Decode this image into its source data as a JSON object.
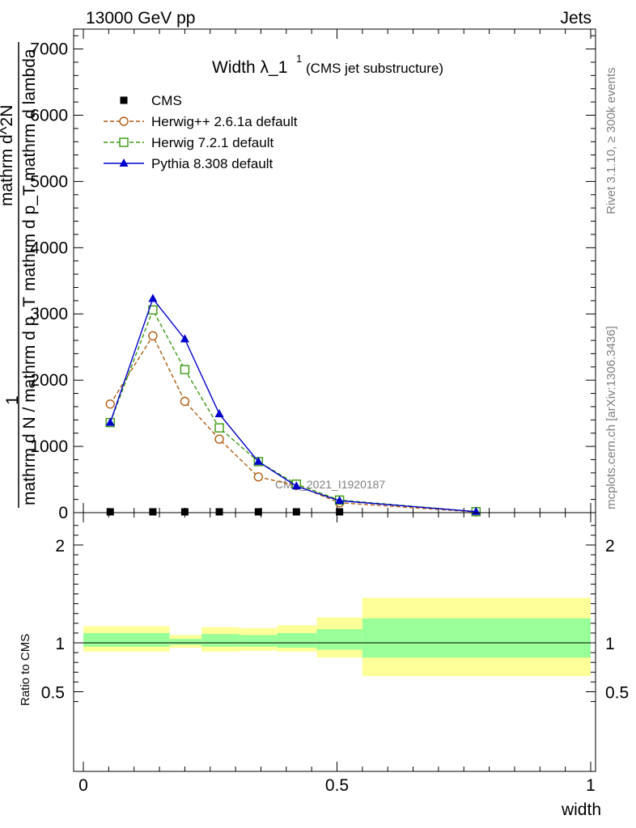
{
  "header": {
    "left": "13000 GeV pp",
    "right": "Jets"
  },
  "title": {
    "main": "Width λ_1",
    "superscript": "1",
    "sub": "(CMS jet substructure)"
  },
  "side_labels": {
    "rivet": "Rivet 3.1.10, ≥ 300k events",
    "mcplots": "mcplots.cern.ch [arXiv:1306.3436]"
  },
  "watermark": "CMS_2021_I1920187",
  "ylabel": {
    "prefix": "1",
    "denominator": "mathrm d N / mathrm d p_T",
    "numerator": "mathrm d^2N",
    "tail": "mathrm d p_T mathrm d lambda"
  },
  "ratio_ylabel": "Ratio to CMS",
  "xlabel": "width",
  "colors": {
    "cms": "#000000",
    "herwig_old": "#b25c10",
    "herwig_new": "#3a9a10",
    "pythia": "#0000cc",
    "band_outer": "#ffff99",
    "band_inner": "#99ff99"
  },
  "chart_data": {
    "type": "line",
    "x": [
      0.053,
      0.137,
      0.2,
      0.268,
      0.345,
      0.42,
      0.505,
      0.774
    ],
    "xlim": [
      -0.02,
      1.0
    ],
    "ylim": [
      0,
      7300
    ],
    "main_ticks": [
      "1000",
      "2000",
      "3000",
      "4000",
      "5000",
      "6000",
      "7000"
    ],
    "main_tick_values": [
      1000,
      2000,
      3000,
      4000,
      5000,
      6000,
      7000
    ],
    "zero_label": "0",
    "x_ticks": [
      "0",
      "0.5",
      "1"
    ],
    "x_tick_values": [
      0,
      0.5,
      1
    ],
    "ratio_ylim": [
      0.3,
      2.3
    ],
    "ratio_ticks": [
      "0.5",
      "1",
      "2"
    ],
    "ratio_tick_values": [
      0.5,
      1,
      2
    ],
    "series": [
      {
        "name": "CMS",
        "marker": "square-filled",
        "values": [
          0,
          0,
          0,
          0,
          0,
          0,
          0,
          0
        ]
      },
      {
        "name": "Herwig++ 2.6.1a default",
        "marker": "circle-open",
        "dashed": true,
        "values": [
          1640,
          2670,
          1680,
          1110,
          540,
          410,
          150,
          10
        ]
      },
      {
        "name": "Herwig 7.2.1 default",
        "marker": "square-open",
        "dashed": true,
        "values": [
          1360,
          3060,
          2160,
          1280,
          770,
          430,
          190,
          15
        ]
      },
      {
        "name": "Pythia 8.308 default",
        "marker": "triangle-filled",
        "dashed": false,
        "values": [
          1360,
          3230,
          2620,
          1490,
          770,
          400,
          180,
          15
        ]
      }
    ],
    "ratio_bands": [
      {
        "lo": 0.0,
        "hi": 0.17,
        "outer": [
          0.91,
          1.17
        ],
        "inner": [
          0.96,
          1.1
        ]
      },
      {
        "lo": 0.17,
        "hi": 0.233,
        "outer": [
          0.95,
          1.08
        ],
        "inner": [
          0.98,
          1.04
        ]
      },
      {
        "lo": 0.233,
        "hi": 0.308,
        "outer": [
          0.91,
          1.16
        ],
        "inner": [
          0.96,
          1.09
        ]
      },
      {
        "lo": 0.308,
        "hi": 0.382,
        "outer": [
          0.92,
          1.15
        ],
        "inner": [
          0.96,
          1.08
        ]
      },
      {
        "lo": 0.382,
        "hi": 0.46,
        "outer": [
          0.91,
          1.18
        ],
        "inner": [
          0.95,
          1.1
        ]
      },
      {
        "lo": 0.46,
        "hi": 0.55,
        "outer": [
          0.85,
          1.26
        ],
        "inner": [
          0.93,
          1.14
        ]
      },
      {
        "lo": 0.55,
        "hi": 1.0,
        "outer": [
          0.66,
          1.46
        ],
        "inner": [
          0.85,
          1.25
        ]
      }
    ]
  }
}
